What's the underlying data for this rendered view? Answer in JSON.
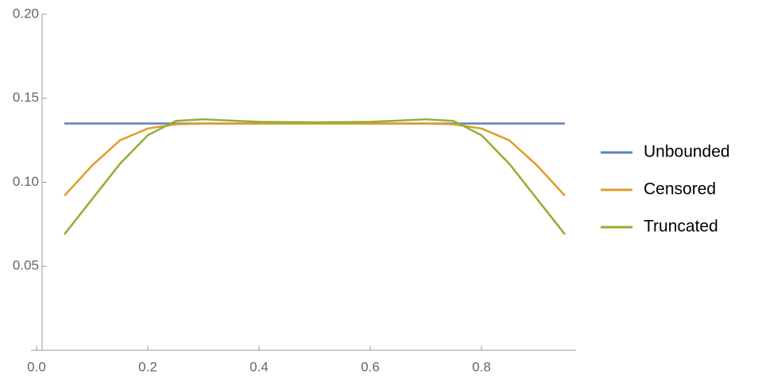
{
  "chart_data": {
    "type": "line",
    "x": [
      0.05,
      0.1,
      0.15,
      0.2,
      0.25,
      0.3,
      0.35,
      0.4,
      0.45,
      0.5,
      0.55,
      0.6,
      0.65,
      0.7,
      0.75,
      0.8,
      0.85,
      0.9,
      0.95
    ],
    "series": [
      {
        "name": "Unbounded",
        "color": "#5e81b5",
        "values": [
          0.135,
          0.135,
          0.135,
          0.135,
          0.135,
          0.135,
          0.135,
          0.135,
          0.135,
          0.135,
          0.135,
          0.135,
          0.135,
          0.135,
          0.135,
          0.135,
          0.135,
          0.135,
          0.135
        ]
      },
      {
        "name": "Censored",
        "color": "#e19c24",
        "values": [
          0.092,
          0.11,
          0.125,
          0.132,
          0.1345,
          0.135,
          0.135,
          0.135,
          0.135,
          0.135,
          0.135,
          0.135,
          0.135,
          0.135,
          0.1345,
          0.132,
          0.125,
          0.11,
          0.092
        ]
      },
      {
        "name": "Truncated",
        "color": "#8fb032",
        "values": [
          0.069,
          0.09,
          0.111,
          0.128,
          0.1365,
          0.1375,
          0.1367,
          0.136,
          0.1358,
          0.1357,
          0.1358,
          0.136,
          0.1367,
          0.1375,
          0.1365,
          0.128,
          0.111,
          0.09,
          0.069
        ]
      }
    ],
    "xlim": [
      -0.01,
      0.97
    ],
    "ylim": [
      0,
      0.2
    ],
    "xticks": [
      {
        "value": 0,
        "label": "0.0"
      },
      0.2,
      0.4,
      0.6,
      0.8
    ],
    "yticks": [
      {
        "value": 0.05,
        "label": "0.05"
      },
      {
        "value": 0.1,
        "label": "0.10"
      },
      {
        "value": 0.15,
        "label": "0.15"
      },
      {
        "value": 0.2,
        "label": "0.20"
      }
    ],
    "legend": "right"
  }
}
